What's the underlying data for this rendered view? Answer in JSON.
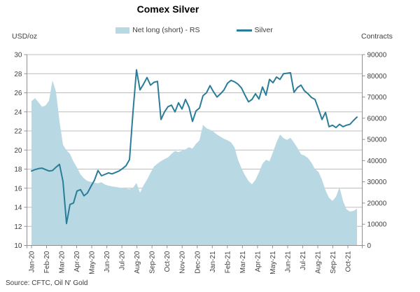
{
  "header": {
    "title": "Comex Silver"
  },
  "legend": {
    "net_long_label": "Net long (short) - RS",
    "silver_label": "Silver"
  },
  "axes": {
    "left_unit": "USD/oz",
    "right_unit": "Contracts"
  },
  "footer": {
    "source": "Source: CFTC, Oil N' Gold"
  },
  "colors": {
    "area": "#b8d9e3",
    "line": "#2a7d99",
    "grid": "#bcbcbc",
    "axis": "#8f8f8f",
    "text": "#404040",
    "title": "#000000"
  },
  "chart_data": {
    "type": "combo",
    "title": "Comex Silver",
    "legend_position": "top",
    "grid": true,
    "x_tick_labels": [
      "Jan-20",
      "Feb-20",
      "Mar-20",
      "Apr-20",
      "May-20",
      "Jun-20",
      "Jul-20",
      "Aug-20",
      "Sep-20",
      "Oct-20",
      "Nov-20",
      "Dec-20",
      "Jan-21",
      "Feb-21",
      "Mar-21",
      "Apr-21",
      "May-21",
      "Jun-21",
      "Jul-21",
      "Aug-21",
      "Sep-21",
      "Oct-21"
    ],
    "left_axis": {
      "label": "USD/oz",
      "min": 10,
      "max": 30,
      "step": 2
    },
    "right_axis": {
      "label": "Contracts",
      "min": 0,
      "max": 90000,
      "step": 10000
    },
    "series": [
      {
        "name": "Net long (short) - RS",
        "type": "area",
        "axis": "right",
        "color": "#b8d9e3",
        "values": [
          68000,
          69500,
          67500,
          65400,
          66000,
          68300,
          77800,
          72500,
          58500,
          47500,
          44900,
          43200,
          39500,
          36800,
          33500,
          31600,
          30400,
          30000,
          29600,
          29300,
          29800,
          28700,
          28200,
          27800,
          27600,
          27300,
          27100,
          26800,
          26500,
          27200,
          29500,
          24800,
          28300,
          31000,
          34200,
          37200,
          38600,
          39800,
          40700,
          41500,
          43200,
          44600,
          44000,
          44700,
          45300,
          46300,
          45700,
          48000,
          49600,
          56900,
          55300,
          54600,
          53600,
          52300,
          51300,
          50300,
          49600,
          48600,
          46300,
          40400,
          36400,
          33100,
          30400,
          28800,
          31000,
          34500,
          38500,
          40400,
          39700,
          44000,
          48600,
          52300,
          50600,
          49800,
          50800,
          48500,
          46000,
          43000,
          42400,
          41200,
          39000,
          36000,
          34700,
          31000,
          26000,
          22500,
          21000,
          23000,
          27500,
          21000,
          17000,
          16000,
          16300,
          17300
        ]
      },
      {
        "name": "Silver",
        "type": "line",
        "axis": "left",
        "color": "#2a7d99",
        "values": [
          17.8,
          17.95,
          18.05,
          18.1,
          17.95,
          17.8,
          17.85,
          18.2,
          18.5,
          16.7,
          12.3,
          14.3,
          14.45,
          15.7,
          15.85,
          15.2,
          15.5,
          16.2,
          16.85,
          17.85,
          17.3,
          17.45,
          17.6,
          17.5,
          17.65,
          17.8,
          18.05,
          18.35,
          19.0,
          24.0,
          28.4,
          26.3,
          26.9,
          27.6,
          26.8,
          27.1,
          27.2,
          23.2,
          24.0,
          24.55,
          24.7,
          24.0,
          24.95,
          24.3,
          25.3,
          24.5,
          23.0,
          24.1,
          24.4,
          25.7,
          26.0,
          26.75,
          26.1,
          25.55,
          25.9,
          26.3,
          27.0,
          27.3,
          27.15,
          26.9,
          26.5,
          25.75,
          25.05,
          25.3,
          25.9,
          25.35,
          26.6,
          25.75,
          27.4,
          27.05,
          27.65,
          27.4,
          28.0,
          28.05,
          28.1,
          26.05,
          26.55,
          26.8,
          26.2,
          25.9,
          25.5,
          25.3,
          24.3,
          23.2,
          23.95,
          22.45,
          22.6,
          22.35,
          22.7,
          22.45,
          22.6,
          22.7,
          23.1,
          23.45
        ]
      }
    ]
  }
}
